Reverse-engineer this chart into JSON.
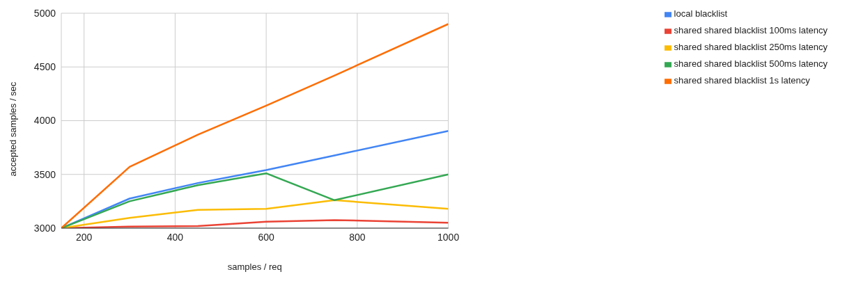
{
  "chart_data": {
    "type": "line",
    "xlabel": "samples / req",
    "ylabel": "accepted samples / sec",
    "x": [
      150,
      300,
      450,
      600,
      750,
      1000
    ],
    "series": [
      {
        "name": "local blacklist",
        "color": "#4285f4",
        "values": [
          3000,
          3275,
          3420,
          3540,
          3677,
          3905
        ]
      },
      {
        "name": "shared shared blacklist 100ms latency",
        "color": "#ea4335",
        "values": [
          3000,
          3015,
          3020,
          3060,
          3075,
          3050
        ]
      },
      {
        "name": "shared shared blacklist 250ms latency",
        "color": "#fbbc04",
        "values": [
          3000,
          3095,
          3170,
          3180,
          3260,
          3180
        ]
      },
      {
        "name": "shared shared blacklist 500ms latency",
        "color": "#34a853",
        "values": [
          3000,
          3250,
          3400,
          3510,
          3260,
          3500
        ]
      },
      {
        "name": "shared shared blacklist 1s latency",
        "color": "#ff6d01",
        "values": [
          3000,
          3570,
          3870,
          4140,
          4420,
          4900
        ]
      }
    ],
    "xlim": [
      150,
      1000
    ],
    "xticks": [
      200,
      400,
      600,
      800,
      1000
    ],
    "ylim": [
      3000,
      5000
    ],
    "yticks": [
      3000,
      3500,
      4000,
      4500,
      5000
    ],
    "grid": true,
    "legend": "top right",
    "marker": "none",
    "line_style": "solid"
  }
}
